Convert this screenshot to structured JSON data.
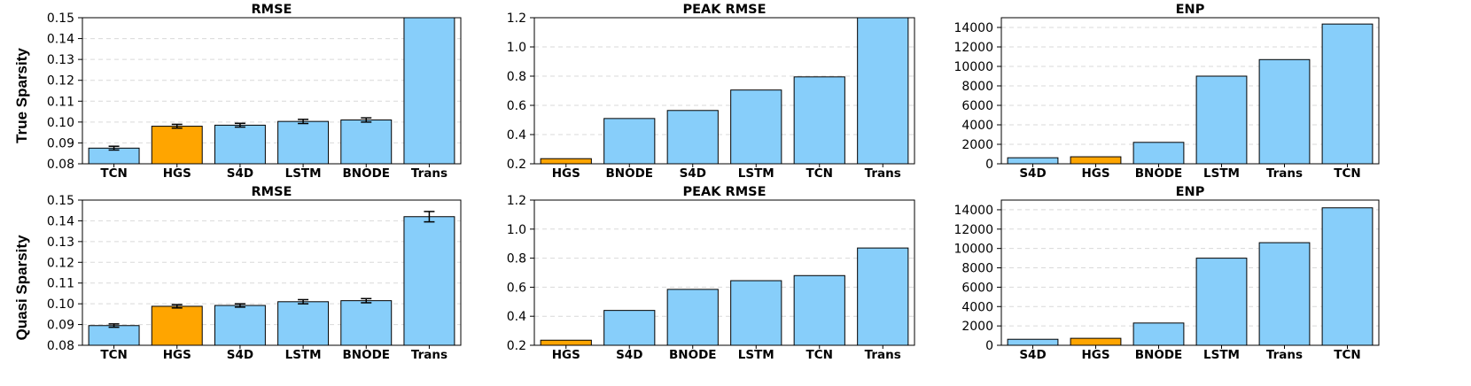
{
  "colors": {
    "highlight": "#FFA500",
    "bar": "#87CEFA",
    "grid": "#d9d9d9",
    "edge": "#000000"
  },
  "row_labels": [
    "True Sparsity",
    "Quasi Sparsity"
  ],
  "chart_data": [
    {
      "type": "bar",
      "title": "RMSE",
      "categories": [
        "TCN",
        "HGS",
        "S4D",
        "LSTM",
        "BNODE",
        "Trans"
      ],
      "values": [
        0.0875,
        0.098,
        0.0985,
        0.1003,
        0.101,
        0.152
      ],
      "errors": [
        0.0009,
        0.0009,
        0.0009,
        0.001,
        0.001,
        0
      ],
      "highlight": "HGS",
      "ylim": [
        0.08,
        0.15
      ],
      "yticks": [
        0.08,
        0.09,
        0.1,
        0.11,
        0.12,
        0.13,
        0.14,
        0.15
      ],
      "ytick_labels": [
        "0.08",
        "0.09",
        "0.10",
        "0.11",
        "0.12",
        "0.13",
        "0.14",
        "0.15"
      ]
    },
    {
      "type": "bar",
      "title": "PEAK RMSE",
      "categories": [
        "HGS",
        "BNODE",
        "S4D",
        "LSTM",
        "TCN",
        "Trans"
      ],
      "values": [
        0.235,
        0.51,
        0.565,
        0.705,
        0.795,
        1.21
      ],
      "highlight": "HGS",
      "ylim": [
        0.2,
        1.2
      ],
      "yticks": [
        0.2,
        0.4,
        0.6,
        0.8,
        1.0,
        1.2
      ],
      "ytick_labels": [
        "0.2",
        "0.4",
        "0.6",
        "0.8",
        "1.0",
        "1.2"
      ]
    },
    {
      "type": "bar",
      "title": "ENP",
      "categories": [
        "S4D",
        "HGS",
        "BNODE",
        "LSTM",
        "Trans",
        "TCN"
      ],
      "values": [
        620,
        720,
        2200,
        9000,
        10700,
        14350
      ],
      "highlight": "HGS",
      "ylim": [
        0,
        15000
      ],
      "yticks": [
        0,
        2000,
        4000,
        6000,
        8000,
        10000,
        12000,
        14000
      ],
      "ytick_labels": [
        "0",
        "2000",
        "4000",
        "6000",
        "8000",
        "10000",
        "12000",
        "14000"
      ]
    },
    {
      "type": "bar",
      "title": "RMSE",
      "categories": [
        "TCN",
        "HGS",
        "S4D",
        "LSTM",
        "BNODE",
        "Trans"
      ],
      "values": [
        0.0895,
        0.0988,
        0.0992,
        0.101,
        0.1015,
        0.142
      ],
      "errors": [
        0.0008,
        0.0008,
        0.0008,
        0.001,
        0.001,
        0.0025
      ],
      "highlight": "HGS",
      "ylim": [
        0.08,
        0.15
      ],
      "yticks": [
        0.08,
        0.09,
        0.1,
        0.11,
        0.12,
        0.13,
        0.14,
        0.15
      ],
      "ytick_labels": [
        "0.08",
        "0.09",
        "0.10",
        "0.11",
        "0.12",
        "0.13",
        "0.14",
        "0.15"
      ]
    },
    {
      "type": "bar",
      "title": "PEAK RMSE",
      "categories": [
        "HGS",
        "S4D",
        "BNODE",
        "LSTM",
        "TCN",
        "Trans"
      ],
      "values": [
        0.235,
        0.44,
        0.585,
        0.645,
        0.68,
        0.87
      ],
      "highlight": "HGS",
      "ylim": [
        0.2,
        1.2
      ],
      "yticks": [
        0.2,
        0.4,
        0.6,
        0.8,
        1.0,
        1.2
      ],
      "ytick_labels": [
        "0.2",
        "0.4",
        "0.6",
        "0.8",
        "1.0",
        "1.2"
      ]
    },
    {
      "type": "bar",
      "title": "ENP",
      "categories": [
        "S4D",
        "HGS",
        "BNODE",
        "LSTM",
        "Trans",
        "TCN"
      ],
      "values": [
        620,
        720,
        2300,
        9000,
        10600,
        14200
      ],
      "highlight": "HGS",
      "ylim": [
        0,
        15000
      ],
      "yticks": [
        0,
        2000,
        4000,
        6000,
        8000,
        10000,
        12000,
        14000
      ],
      "ytick_labels": [
        "0",
        "2000",
        "4000",
        "6000",
        "8000",
        "10000",
        "12000",
        "14000"
      ]
    }
  ]
}
